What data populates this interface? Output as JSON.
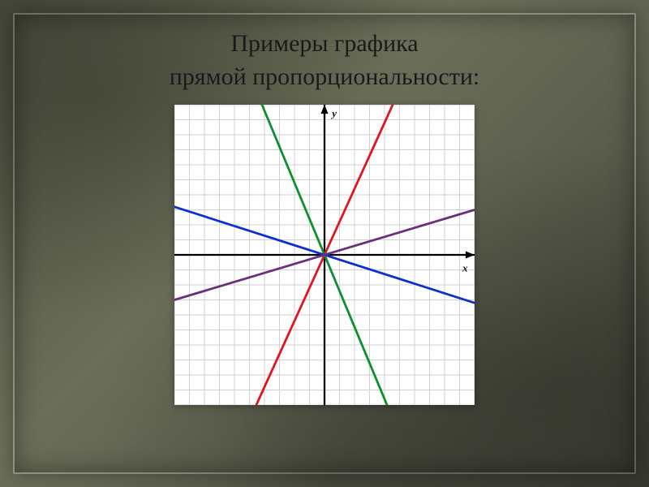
{
  "title_line1": "Примеры  графика",
  "title_line2": "прямой пропорциональности:",
  "title_fontsize": 30,
  "title_color": "#1a1a1a",
  "chart": {
    "type": "line",
    "background_color": "#ffffff",
    "grid_color": "#cfcfcf",
    "axis_color": "#000000",
    "xlim": [
      -10,
      10
    ],
    "ylim": [
      -10,
      10
    ],
    "tick_step": 1,
    "x_axis_label": "x",
    "y_axis_label": "y",
    "axis_label_color": "#111111",
    "axis_label_fontsize": 14,
    "lines": [
      {
        "name": "red",
        "slope": 2.2,
        "color": "#e0131f",
        "width": 3
      },
      {
        "name": "green",
        "slope": -2.4,
        "color": "#0a8f2d",
        "width": 3
      },
      {
        "name": "blue",
        "slope": -0.32,
        "color": "#0d2fcf",
        "width": 3
      },
      {
        "name": "purple",
        "slope": 0.3,
        "color": "#6a2f7a",
        "width": 3
      }
    ]
  }
}
